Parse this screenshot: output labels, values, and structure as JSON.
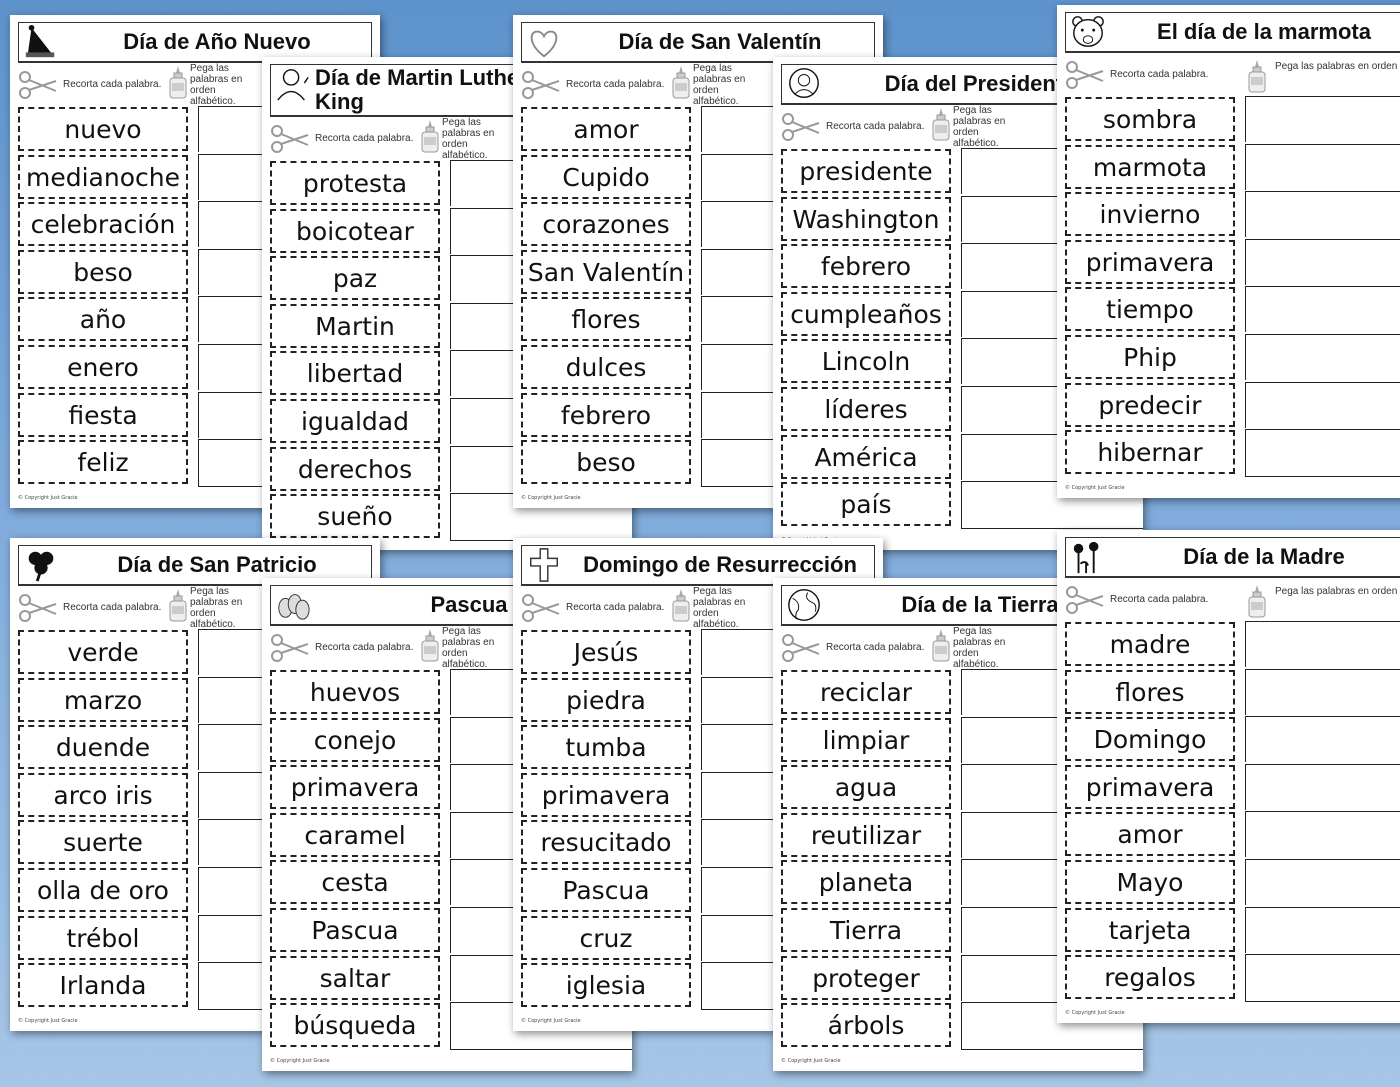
{
  "copyright": "© Copyright Just Gracie",
  "instructions": {
    "cut": "Recorta cada palabra.",
    "paste": "Pega las palabras en orden alfabético."
  },
  "worksheets": [
    {
      "title": "Día de Año Nuevo",
      "icon": "party-hat-icon",
      "words": [
        "nuevo",
        "medianoche",
        "celebración",
        "beso",
        "año",
        "enero",
        "fiesta",
        "feliz"
      ]
    },
    {
      "title": "Día de Martin Luther King",
      "icon": "mlk-portrait-icon",
      "words": [
        "protesta",
        "boicotear",
        "paz",
        "Martin",
        "libertad",
        "igualdad",
        "derechos",
        "sueño"
      ]
    },
    {
      "title": "Día de San Valentín",
      "icon": "heart-icon",
      "words": [
        "amor",
        "Cupido",
        "corazones",
        "San Valentín",
        "flores",
        "dulces",
        "febrero",
        "beso"
      ]
    },
    {
      "title": "Día del Presidente",
      "icon": "president-portrait-icon",
      "words": [
        "presidente",
        "Washington",
        "febrero",
        "cumpleaños",
        "Lincoln",
        "líderes",
        "América",
        "país"
      ]
    },
    {
      "title": "El día de la marmota",
      "icon": "groundhog-icon",
      "words": [
        "sombra",
        "marmota",
        "invierno",
        "primavera",
        "tiempo",
        "Phip",
        "predecir",
        "hibernar"
      ]
    },
    {
      "title": "Día de San Patricio",
      "icon": "shamrock-icon",
      "words": [
        "verde",
        "marzo",
        "duende",
        "arco iris",
        "suerte",
        "olla de oro",
        "trébol",
        "Irlanda"
      ]
    },
    {
      "title": "Pascua",
      "icon": "eggs-icon",
      "words": [
        "huevos",
        "conejo",
        "primavera",
        "caramel",
        "cesta",
        "Pascua",
        "saltar",
        "búsqueda"
      ]
    },
    {
      "title": "Domingo de Resurrección",
      "icon": "cross-icon",
      "words": [
        "Jesús",
        "piedra",
        "tumba",
        "primavera",
        "resucitado",
        "Pascua",
        "cruz",
        "iglesia"
      ]
    },
    {
      "title": "Día de la Tierra",
      "icon": "globe-icon",
      "words": [
        "reciclar",
        "limpiar",
        "agua",
        "reutilizar",
        "planeta",
        "Tierra",
        "proteger",
        "árbols"
      ]
    },
    {
      "title": "Día de la Madre",
      "icon": "flowers-icon",
      "words": [
        "madre",
        "flores",
        "Domingo",
        "primavera",
        "amor",
        "Mayo",
        "tarjeta",
        "regalos"
      ]
    }
  ]
}
